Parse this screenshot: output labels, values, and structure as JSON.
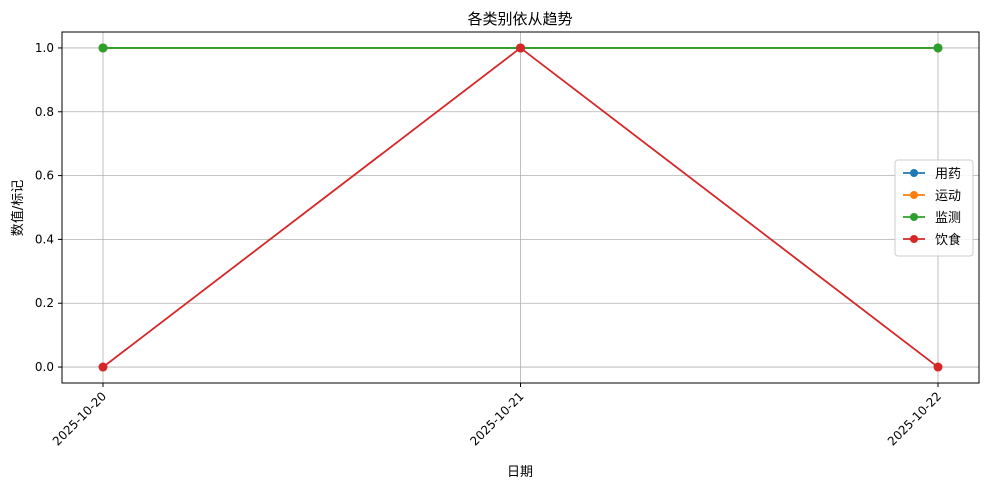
{
  "chart_data": {
    "type": "line",
    "title": "各类别依从趋势",
    "xlabel": "日期",
    "ylabel": "数值/标记",
    "categories": [
      "2025-10-20",
      "2025-10-21",
      "2025-10-22"
    ],
    "ylim": [
      -0.05,
      1.05
    ],
    "yticks": [
      0.0,
      0.2,
      0.4,
      0.6,
      0.8,
      1.0
    ],
    "ytick_labels": [
      "0.0",
      "0.2",
      "0.4",
      "0.6",
      "0.8",
      "1.0"
    ],
    "grid": true,
    "legend_position": "center-right",
    "series": [
      {
        "name": "用药",
        "color": "#1f77b4",
        "values": [
          1,
          1,
          1
        ]
      },
      {
        "name": "运动",
        "color": "#ff7f0e",
        "values": [
          1,
          1,
          1
        ]
      },
      {
        "name": "监测",
        "color": "#2ca02c",
        "values": [
          1,
          1,
          1
        ]
      },
      {
        "name": "饮食",
        "color": "#d62728",
        "values": [
          0,
          1,
          0
        ]
      }
    ]
  }
}
